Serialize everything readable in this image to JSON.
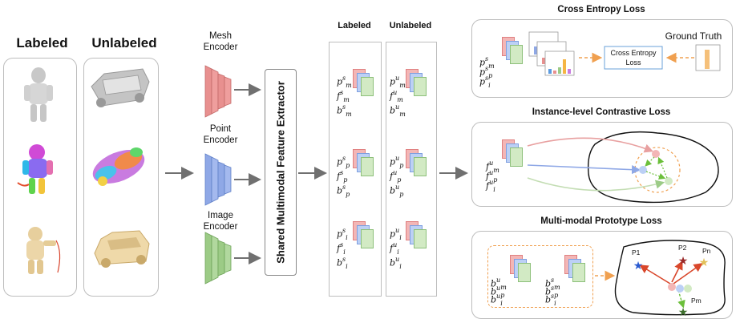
{
  "left": {
    "labeled_title": "Labeled",
    "unlabeled_title": "Unlabeled"
  },
  "encoders": {
    "mesh": "Mesh\nEncoder",
    "point": "Point\nEncoder",
    "image": "Image\nEncoder"
  },
  "extractor_label": "Shared Multimodal Feature Extractor",
  "columns": {
    "labeled": "Labeled",
    "unlabeled": "Unlabeled"
  },
  "features": {
    "labeled_groups": [
      [
        "p",
        "m",
        "s"
      ],
      [
        "f",
        "m",
        "s"
      ],
      [
        "b",
        "m",
        "s"
      ],
      [
        "p",
        "p",
        "s"
      ],
      [
        "f",
        "p",
        "s"
      ],
      [
        "b",
        "p",
        "s"
      ],
      [
        "p",
        "i",
        "s"
      ],
      [
        "f",
        "i",
        "s"
      ],
      [
        "b",
        "i",
        "s"
      ]
    ],
    "unlabeled_groups": [
      [
        "p",
        "m",
        "u"
      ],
      [
        "f",
        "m",
        "u"
      ],
      [
        "b",
        "m",
        "u"
      ],
      [
        "p",
        "p",
        "u"
      ],
      [
        "f",
        "p",
        "u"
      ],
      [
        "b",
        "p",
        "u"
      ],
      [
        "p",
        "i",
        "u"
      ],
      [
        "f",
        "i",
        "u"
      ],
      [
        "b",
        "i",
        "u"
      ]
    ]
  },
  "cross_entropy": {
    "title": "Cross Entropy Loss",
    "loss_box": "Cross Entropy\nLoss",
    "ground_truth": "Ground Truth",
    "labels": [
      [
        "p",
        "m",
        "s"
      ],
      [
        "p",
        "p",
        "s"
      ],
      [
        "p",
        "i",
        "s"
      ]
    ]
  },
  "contrastive": {
    "title": "Instance-level Contrastive Loss",
    "labels": [
      [
        "f",
        "m",
        "u"
      ],
      [
        "f",
        "p",
        "u"
      ],
      [
        "f",
        "i",
        "u"
      ]
    ]
  },
  "prototype": {
    "title": "Multi-modal Prototype Loss",
    "unlabeled_labels": [
      [
        "b",
        "m",
        "u"
      ],
      [
        "b",
        "p",
        "u"
      ],
      [
        "b",
        "i",
        "u"
      ]
    ],
    "labeled_labels": [
      [
        "b",
        "m",
        "s"
      ],
      [
        "b",
        "p",
        "s"
      ],
      [
        "b",
        "i",
        "s"
      ]
    ],
    "prototypes": [
      "P1",
      "P2",
      "Pn",
      "Pm"
    ]
  },
  "colors": {
    "mesh": "#e8908f",
    "point": "#8fa8e6",
    "image": "#9ccb86",
    "arrow_gray": "#707070",
    "arrow_orange": "#f0a050",
    "arrow_red": "#d9472b",
    "arrow_green": "#6bbf3a"
  }
}
